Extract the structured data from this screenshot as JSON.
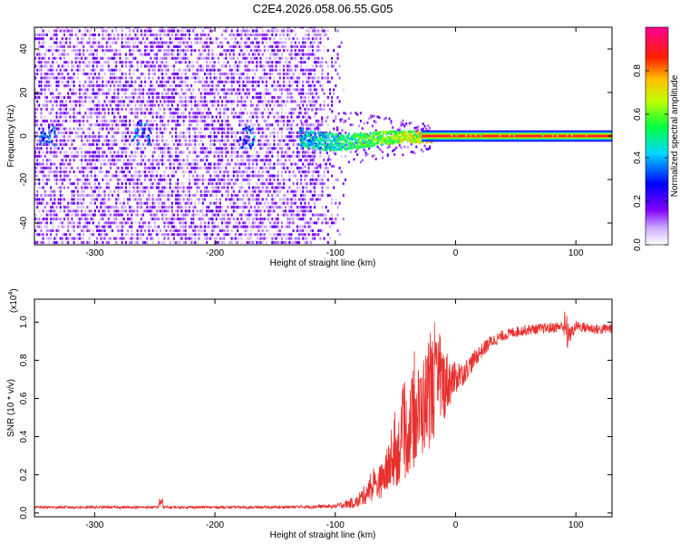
{
  "title": "C2E4.2026.058.06.55.G05",
  "chart_data": [
    {
      "type": "heatmap",
      "panel": "top",
      "xlabel": "Height of straight line (km)",
      "ylabel": "Frequency (Hz)",
      "xlim": [
        -350,
        130
      ],
      "ylim": [
        -50,
        50
      ],
      "x_ticks": [
        -300,
        -200,
        -100,
        0,
        100
      ],
      "x_tick_labels": [
        "-300",
        "-200",
        "-100",
        "0",
        "100"
      ],
      "y_ticks": [
        -40,
        -20,
        0,
        20,
        40
      ],
      "y_tick_labels": [
        "-40",
        "-20",
        "0",
        "20",
        "40"
      ],
      "colorbar": {
        "label": "Normalized spectral amplitude",
        "range": [
          0,
          1
        ],
        "ticks": [
          0.0,
          0.2,
          0.4,
          0.6,
          0.8
        ],
        "tick_labels": [
          "0.0",
          "0.2",
          "0.4",
          "0.6",
          "0.8"
        ],
        "colormap": [
          "#ffffff",
          "#8000ff",
          "#0000ff",
          "#00ffff",
          "#00ff00",
          "#ffff00",
          "#ff8000",
          "#ff0000",
          "#ff0080"
        ]
      },
      "features": {
        "noise_region_km": [
          -350,
          -100
        ],
        "carrier_band_start_km": -130,
        "carrier_band_stable_km": -20,
        "carrier_frequency_hz": 0,
        "carrier_spread_hz": 4
      }
    },
    {
      "type": "line",
      "panel": "bottom",
      "xlabel": "Height of straight line (km)",
      "ylabel": "SNR (10 * v/v)",
      "y_scale_label": "(x10",
      "y_scale_exponent": "4",
      "y_scale_suffix": ")",
      "xlim": [
        -350,
        130
      ],
      "ylim": [
        -0.02,
        1.12
      ],
      "x_ticks": [
        -300,
        -200,
        -100,
        0,
        100
      ],
      "x_tick_labels": [
        "-300",
        "-200",
        "-100",
        "0",
        "100"
      ],
      "y_ticks": [
        0.0,
        0.2,
        0.4,
        0.6,
        0.8,
        1.0
      ],
      "y_tick_labels": [
        "0.0",
        "0.2",
        "0.4",
        "0.6",
        "0.8",
        "1.0"
      ],
      "color": "#e8302e",
      "series": [
        {
          "name": "SNR",
          "x": [
            -350,
            -300,
            -250,
            -200,
            -150,
            -100,
            -80,
            -60,
            -40,
            -20,
            -10,
            0,
            10,
            20,
            30,
            40,
            50,
            60,
            80,
            90,
            95,
            100,
            110,
            120,
            130
          ],
          "y_mean": [
            0.03,
            0.03,
            0.03,
            0.03,
            0.03,
            0.035,
            0.06,
            0.15,
            0.35,
            0.55,
            0.62,
            0.68,
            0.76,
            0.84,
            0.9,
            0.93,
            0.95,
            0.96,
            0.97,
            0.98,
            0.93,
            0.98,
            0.97,
            0.96,
            0.97
          ],
          "y_noise": [
            0.01,
            0.01,
            0.01,
            0.01,
            0.01,
            0.015,
            0.05,
            0.12,
            0.3,
            0.35,
            0.25,
            0.1,
            0.08,
            0.06,
            0.05,
            0.04,
            0.04,
            0.04,
            0.04,
            0.04,
            0.06,
            0.04,
            0.04,
            0.04,
            0.04
          ]
        }
      ],
      "annotations": [
        {
          "x": -245,
          "y": 0.09,
          "text": ""
        },
        {
          "x": 92,
          "y": 1.08,
          "text": ""
        }
      ]
    }
  ]
}
